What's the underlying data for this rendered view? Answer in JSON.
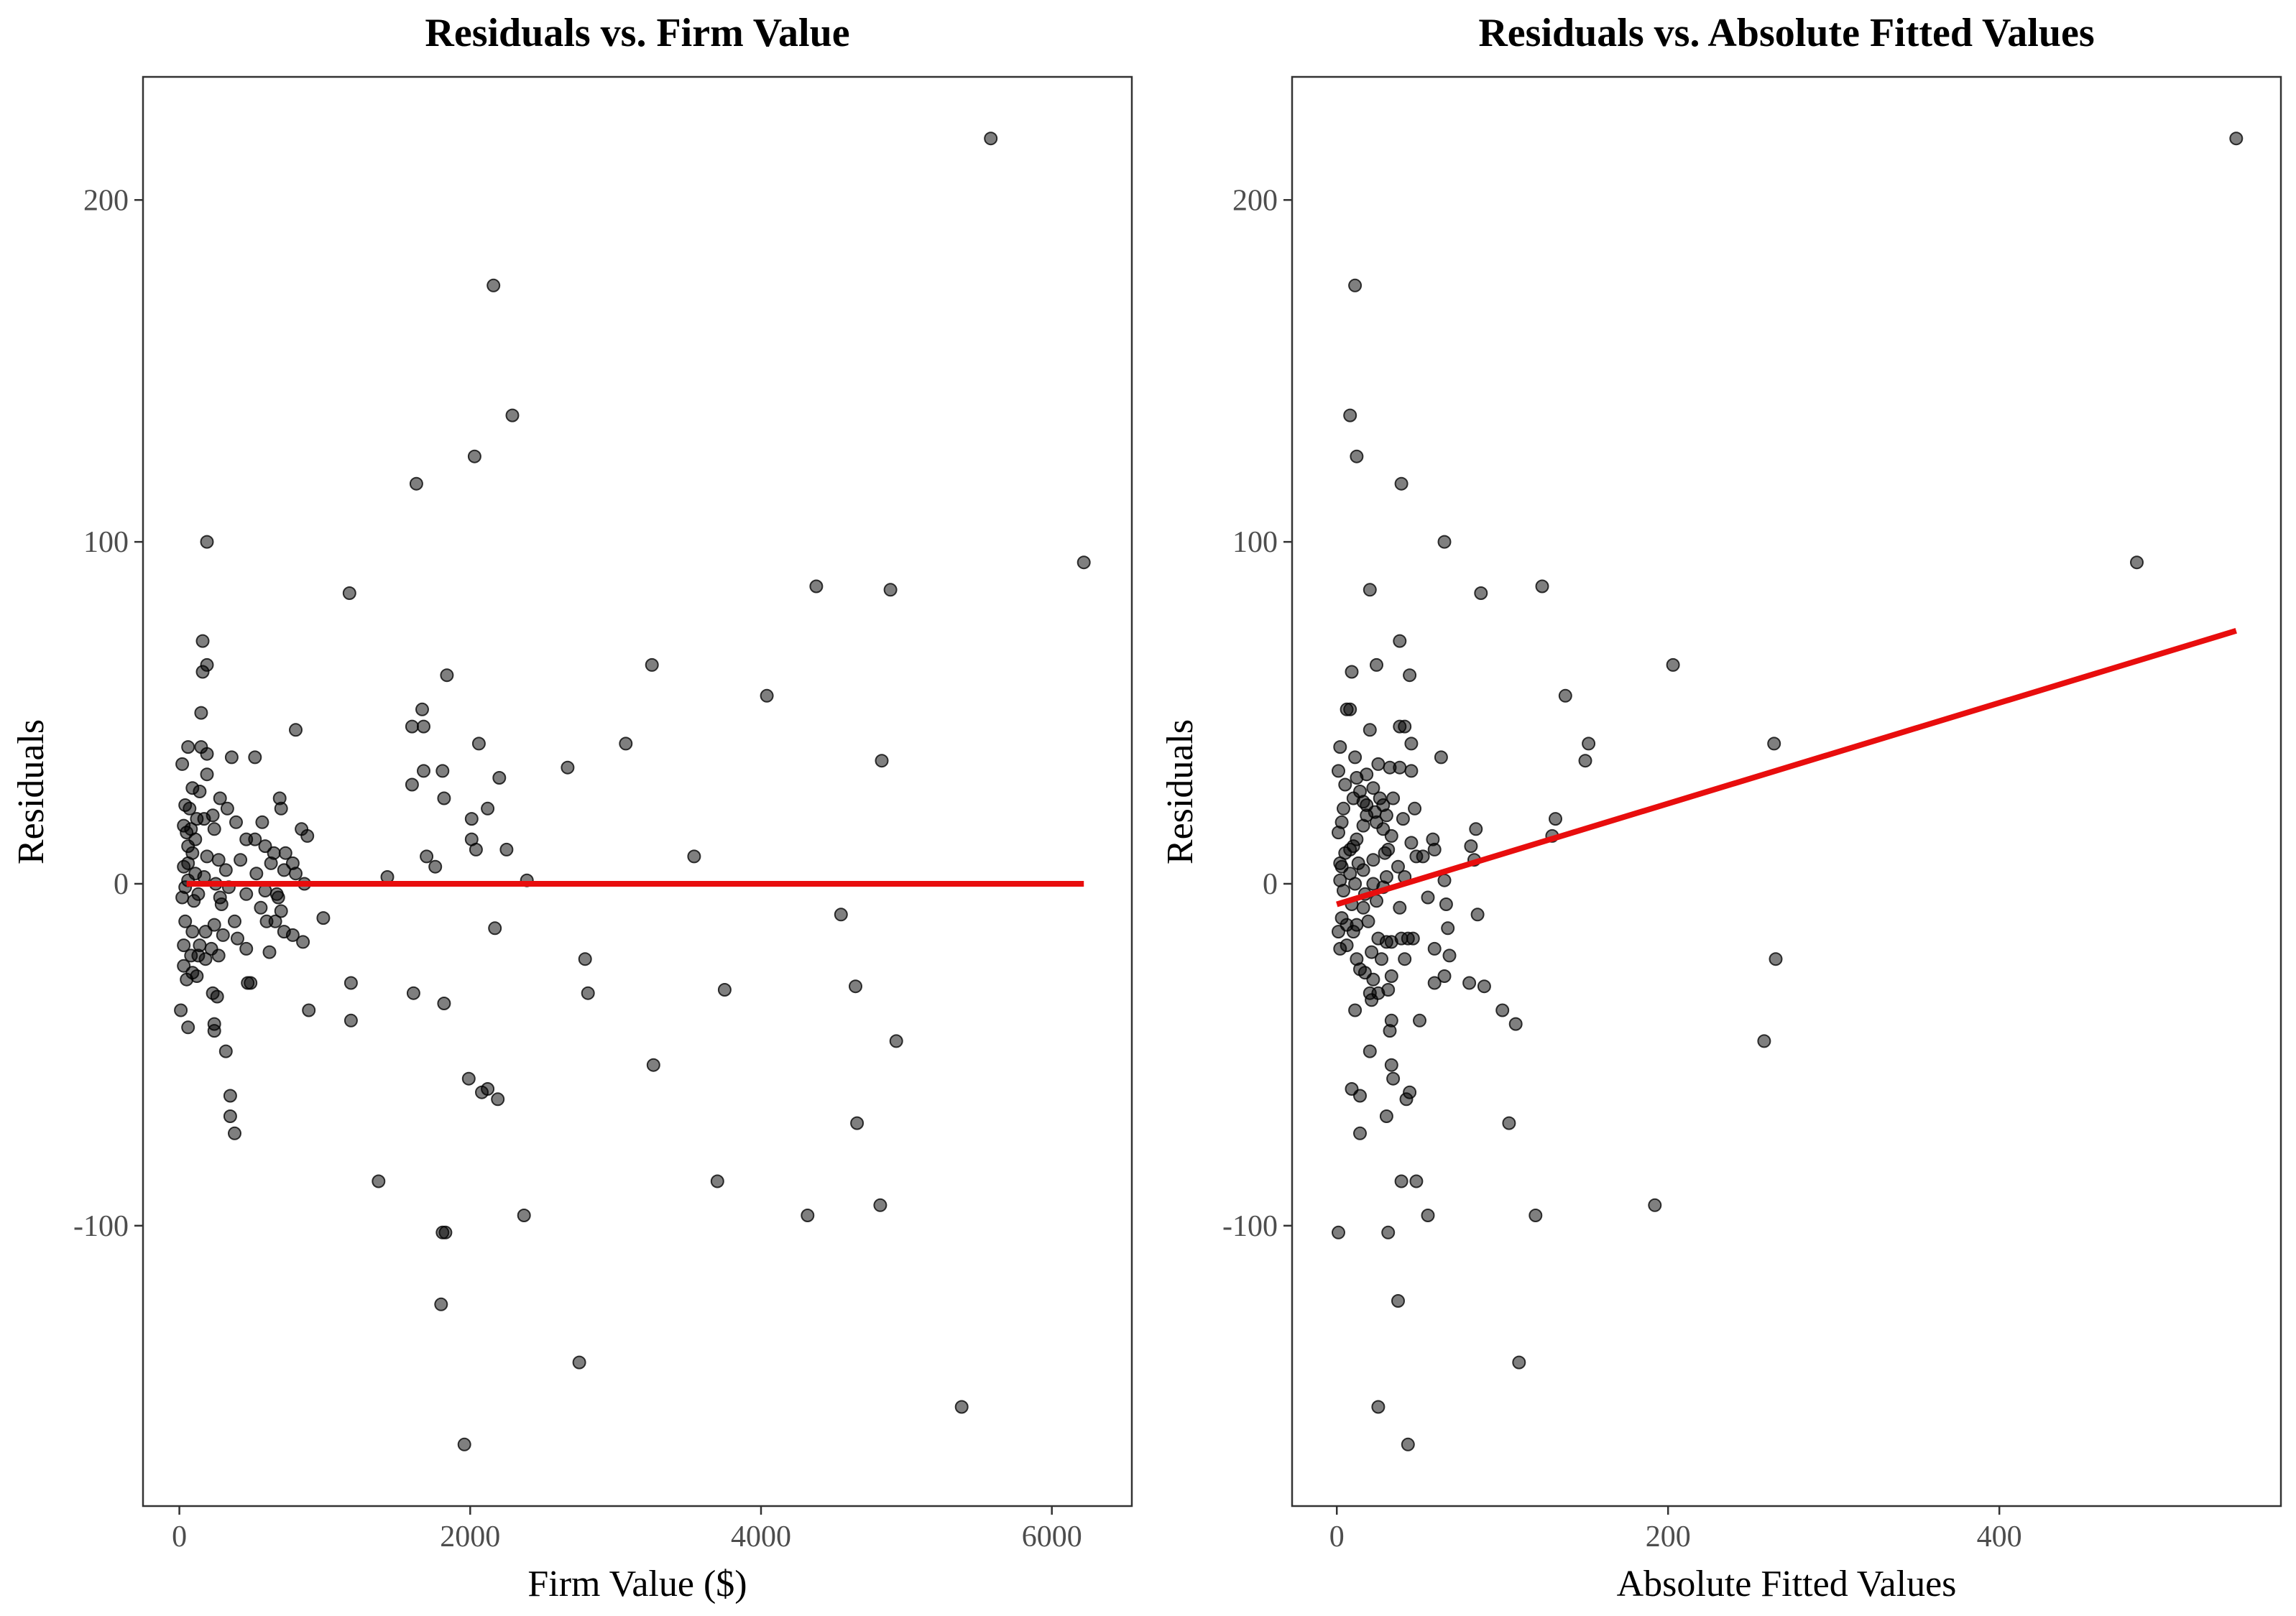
{
  "chart_data": [
    {
      "type": "scatter",
      "title": "Residuals vs. Firm Value",
      "xlabel": "Firm Value ($)",
      "ylabel": "Residuals",
      "xlim": [
        -250,
        6550
      ],
      "ylim": [
        -182,
        236
      ],
      "xticks": [
        0,
        2000,
        4000,
        6000
      ],
      "yticks": [
        -100,
        0,
        100,
        200
      ],
      "xtick_labels": [
        "0",
        "2000",
        "4000",
        "6000"
      ],
      "ytick_labels": [
        "-100",
        "0",
        "100",
        "200"
      ],
      "grid": false,
      "point_color": "#000000",
      "trend": {
        "x": [
          50,
          6220
        ],
        "y": [
          0,
          0
        ],
        "color": "#e80d0d"
      },
      "points": [
        [
          5580,
          218
        ],
        [
          2160,
          175
        ],
        [
          2290,
          137
        ],
        [
          2030,
          125
        ],
        [
          1630,
          117
        ],
        [
          190,
          100
        ],
        [
          6220,
          94
        ],
        [
          4380,
          87
        ],
        [
          4890,
          86
        ],
        [
          1170,
          85
        ],
        [
          160,
          71
        ],
        [
          3250,
          64
        ],
        [
          190,
          64
        ],
        [
          160,
          62
        ],
        [
          1840,
          61
        ],
        [
          4040,
          55
        ],
        [
          1670,
          51
        ],
        [
          150,
          50
        ],
        [
          1600,
          46
        ],
        [
          1680,
          46
        ],
        [
          800,
          45
        ],
        [
          2060,
          41
        ],
        [
          3070,
          41
        ],
        [
          60,
          40
        ],
        [
          150,
          40
        ],
        [
          190,
          38
        ],
        [
          360,
          37
        ],
        [
          520,
          37
        ],
        [
          4830,
          36
        ],
        [
          20,
          35
        ],
        [
          2670,
          34
        ],
        [
          1680,
          33
        ],
        [
          1810,
          33
        ],
        [
          190,
          32
        ],
        [
          2200,
          31
        ],
        [
          1600,
          29
        ],
        [
          90,
          28
        ],
        [
          140,
          27
        ],
        [
          280,
          25
        ],
        [
          690,
          25
        ],
        [
          1820,
          25
        ],
        [
          40,
          23
        ],
        [
          70,
          22
        ],
        [
          330,
          22
        ],
        [
          700,
          22
        ],
        [
          2120,
          22
        ],
        [
          230,
          20
        ],
        [
          120,
          19
        ],
        [
          170,
          19
        ],
        [
          2010,
          19
        ],
        [
          390,
          18
        ],
        [
          570,
          18
        ],
        [
          30,
          17
        ],
        [
          80,
          16
        ],
        [
          240,
          16
        ],
        [
          840,
          16
        ],
        [
          50,
          15
        ],
        [
          880,
          14
        ],
        [
          110,
          13
        ],
        [
          460,
          13
        ],
        [
          520,
          13
        ],
        [
          2010,
          13
        ],
        [
          60,
          11
        ],
        [
          590,
          11
        ],
        [
          2250,
          10
        ],
        [
          2040,
          10
        ],
        [
          90,
          9
        ],
        [
          730,
          9
        ],
        [
          650,
          9
        ],
        [
          190,
          8
        ],
        [
          1700,
          8
        ],
        [
          3540,
          8
        ],
        [
          420,
          7
        ],
        [
          270,
          7
        ],
        [
          60,
          6
        ],
        [
          630,
          6
        ],
        [
          780,
          6
        ],
        [
          1760,
          5
        ],
        [
          30,
          5
        ],
        [
          320,
          4
        ],
        [
          720,
          4
        ],
        [
          110,
          3
        ],
        [
          530,
          3
        ],
        [
          800,
          3
        ],
        [
          1430,
          2
        ],
        [
          170,
          2
        ],
        [
          60,
          1
        ],
        [
          2390,
          1
        ],
        [
          250,
          0
        ],
        [
          860,
          0
        ],
        [
          40,
          -1
        ],
        [
          340,
          -1
        ],
        [
          590,
          -2
        ],
        [
          130,
          -3
        ],
        [
          460,
          -3
        ],
        [
          670,
          -3
        ],
        [
          20,
          -4
        ],
        [
          280,
          -4
        ],
        [
          680,
          -4
        ],
        [
          100,
          -5
        ],
        [
          290,
          -6
        ],
        [
          560,
          -7
        ],
        [
          700,
          -8
        ],
        [
          4550,
          -9
        ],
        [
          990,
          -10
        ],
        [
          40,
          -11
        ],
        [
          380,
          -11
        ],
        [
          600,
          -11
        ],
        [
          660,
          -11
        ],
        [
          240,
          -12
        ],
        [
          2170,
          -13
        ],
        [
          90,
          -14
        ],
        [
          180,
          -14
        ],
        [
          720,
          -14
        ],
        [
          300,
          -15
        ],
        [
          780,
          -15
        ],
        [
          400,
          -16
        ],
        [
          850,
          -17
        ],
        [
          30,
          -18
        ],
        [
          140,
          -18
        ],
        [
          460,
          -19
        ],
        [
          220,
          -19
        ],
        [
          620,
          -20
        ],
        [
          80,
          -21
        ],
        [
          130,
          -21
        ],
        [
          270,
          -21
        ],
        [
          180,
          -22
        ],
        [
          2790,
          -22
        ],
        [
          30,
          -24
        ],
        [
          90,
          -26
        ],
        [
          120,
          -27
        ],
        [
          50,
          -28
        ],
        [
          1180,
          -29
        ],
        [
          470,
          -29
        ],
        [
          490,
          -29
        ],
        [
          4650,
          -30
        ],
        [
          3750,
          -31
        ],
        [
          230,
          -32
        ],
        [
          1610,
          -32
        ],
        [
          260,
          -33
        ],
        [
          2810,
          -32
        ],
        [
          1820,
          -35
        ],
        [
          10,
          -37
        ],
        [
          890,
          -37
        ],
        [
          1180,
          -40
        ],
        [
          240,
          -41
        ],
        [
          60,
          -42
        ],
        [
          240,
          -43
        ],
        [
          4930,
          -46
        ],
        [
          320,
          -49
        ],
        [
          3260,
          -53
        ],
        [
          1990,
          -57
        ],
        [
          2120,
          -60
        ],
        [
          2080,
          -61
        ],
        [
          350,
          -62
        ],
        [
          2190,
          -63
        ],
        [
          350,
          -68
        ],
        [
          4660,
          -70
        ],
        [
          380,
          -73
        ],
        [
          1370,
          -87
        ],
        [
          3700,
          -87
        ],
        [
          4820,
          -94
        ],
        [
          2370,
          -97
        ],
        [
          4320,
          -97
        ],
        [
          1830,
          -102
        ],
        [
          1810,
          -102
        ],
        [
          1800,
          -123
        ],
        [
          2750,
          -140
        ],
        [
          5380,
          -153
        ],
        [
          1960,
          -164
        ]
      ]
    },
    {
      "type": "scatter",
      "title": "Residuals vs. Absolute Fitted Values",
      "xlabel": "Absolute Fitted Values",
      "ylabel": "Residuals",
      "xlim": [
        -27,
        570
      ],
      "ylim": [
        -182,
        236
      ],
      "xticks": [
        0,
        200,
        400
      ],
      "yticks": [
        -100,
        0,
        100,
        200
      ],
      "xtick_labels": [
        "0",
        "200",
        "400"
      ],
      "ytick_labels": [
        "-100",
        "0",
        "100",
        "200"
      ],
      "grid": false,
      "point_color": "#000000",
      "trend": {
        "x": [
          0,
          543
        ],
        "y": [
          -6,
          74
        ],
        "color": "#e80d0d"
      },
      "points": [
        [
          543,
          218
        ],
        [
          11,
          175
        ],
        [
          8,
          137
        ],
        [
          12,
          125
        ],
        [
          39,
          117
        ],
        [
          65,
          100
        ],
        [
          483,
          94
        ],
        [
          124,
          87
        ],
        [
          20,
          86
        ],
        [
          87,
          85
        ],
        [
          38,
          71
        ],
        [
          24,
          64
        ],
        [
          203,
          64
        ],
        [
          9,
          62
        ],
        [
          44,
          61
        ],
        [
          138,
          55
        ],
        [
          6,
          51
        ],
        [
          8,
          51
        ],
        [
          38,
          46
        ],
        [
          41,
          46
        ],
        [
          20,
          45
        ],
        [
          152,
          41
        ],
        [
          264,
          41
        ],
        [
          45,
          41
        ],
        [
          2,
          40
        ],
        [
          11,
          37
        ],
        [
          63,
          37
        ],
        [
          150,
          36
        ],
        [
          25,
          35
        ],
        [
          38,
          34
        ],
        [
          32,
          34
        ],
        [
          45,
          33
        ],
        [
          1,
          33
        ],
        [
          18,
          32
        ],
        [
          12,
          31
        ],
        [
          5,
          29
        ],
        [
          22,
          28
        ],
        [
          14,
          27
        ],
        [
          34,
          25
        ],
        [
          26,
          25
        ],
        [
          10,
          25
        ],
        [
          16,
          24
        ],
        [
          18,
          23
        ],
        [
          28,
          23
        ],
        [
          47,
          22
        ],
        [
          4,
          22
        ],
        [
          23,
          21
        ],
        [
          18,
          20
        ],
        [
          30,
          20
        ],
        [
          40,
          19
        ],
        [
          132,
          19
        ],
        [
          24,
          18
        ],
        [
          3,
          18
        ],
        [
          16,
          17
        ],
        [
          28,
          16
        ],
        [
          84,
          16
        ],
        [
          1,
          15
        ],
        [
          33,
          14
        ],
        [
          130,
          14
        ],
        [
          12,
          13
        ],
        [
          58,
          13
        ],
        [
          45,
          12
        ],
        [
          10,
          11
        ],
        [
          81,
          11
        ],
        [
          31,
          10
        ],
        [
          59,
          10
        ],
        [
          8,
          10
        ],
        [
          5,
          9
        ],
        [
          29,
          9
        ],
        [
          48,
          8
        ],
        [
          52,
          8
        ],
        [
          83,
          7
        ],
        [
          22,
          7
        ],
        [
          2,
          6
        ],
        [
          13,
          6
        ],
        [
          3,
          5
        ],
        [
          37,
          5
        ],
        [
          16,
          4
        ],
        [
          8,
          3
        ],
        [
          30,
          2
        ],
        [
          41,
          2
        ],
        [
          65,
          1
        ],
        [
          2,
          1
        ],
        [
          22,
          0
        ],
        [
          11,
          0
        ],
        [
          28,
          -1
        ],
        [
          4,
          -2
        ],
        [
          17,
          -3
        ],
        [
          55,
          -4
        ],
        [
          24,
          -5
        ],
        [
          9,
          -6
        ],
        [
          66,
          -6
        ],
        [
          16,
          -7
        ],
        [
          38,
          -7
        ],
        [
          85,
          -9
        ],
        [
          3,
          -10
        ],
        [
          19,
          -11
        ],
        [
          6,
          -12
        ],
        [
          12,
          -12
        ],
        [
          67,
          -13
        ],
        [
          1,
          -14
        ],
        [
          10,
          -14
        ],
        [
          25,
          -16
        ],
        [
          43,
          -16
        ],
        [
          39,
          -16
        ],
        [
          46,
          -16
        ],
        [
          30,
          -17
        ],
        [
          33,
          -17
        ],
        [
          6,
          -18
        ],
        [
          59,
          -19
        ],
        [
          2,
          -19
        ],
        [
          21,
          -20
        ],
        [
          68,
          -21
        ],
        [
          12,
          -22
        ],
        [
          27,
          -22
        ],
        [
          41,
          -22
        ],
        [
          265,
          -22
        ],
        [
          14,
          -25
        ],
        [
          17,
          -26
        ],
        [
          33,
          -27
        ],
        [
          65,
          -27
        ],
        [
          22,
          -28
        ],
        [
          80,
          -29
        ],
        [
          59,
          -29
        ],
        [
          89,
          -30
        ],
        [
          31,
          -31
        ],
        [
          20,
          -32
        ],
        [
          25,
          -32
        ],
        [
          21,
          -34
        ],
        [
          11,
          -37
        ],
        [
          100,
          -37
        ],
        [
          33,
          -40
        ],
        [
          50,
          -40
        ],
        [
          108,
          -41
        ],
        [
          32,
          -43
        ],
        [
          258,
          -46
        ],
        [
          20,
          -49
        ],
        [
          33,
          -53
        ],
        [
          34,
          -57
        ],
        [
          9,
          -60
        ],
        [
          44,
          -61
        ],
        [
          14,
          -62
        ],
        [
          42,
          -63
        ],
        [
          30,
          -68
        ],
        [
          104,
          -70
        ],
        [
          14,
          -73
        ],
        [
          39,
          -87
        ],
        [
          48,
          -87
        ],
        [
          192,
          -94
        ],
        [
          55,
          -97
        ],
        [
          120,
          -97
        ],
        [
          1,
          -102
        ],
        [
          31,
          -102
        ],
        [
          37,
          -122
        ],
        [
          110,
          -140
        ],
        [
          25,
          -153
        ],
        [
          43,
          -164
        ]
      ]
    }
  ]
}
